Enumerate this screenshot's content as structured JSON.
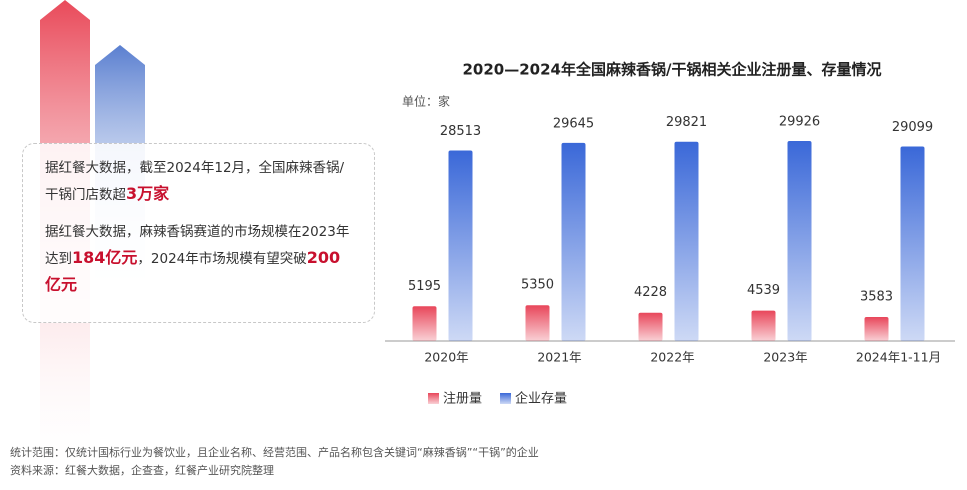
{
  "panel": {
    "paragraphs": [
      [
        {
          "text": "据红餐大数据，截至2024年12月，全国麻辣香锅/干锅门店数超",
          "bold": false
        },
        {
          "text": "3万家",
          "bold": true
        }
      ],
      [
        {
          "text": "据红餐大数据，麻辣香锅赛道的市场规模在2023年达到",
          "bold": false
        },
        {
          "text": "184亿元",
          "bold": true
        },
        {
          "text": "，2024年市场规模有望突破",
          "bold": false
        },
        {
          "text": "200亿元",
          "bold": true
        }
      ]
    ]
  },
  "chart_data": {
    "type": "bar",
    "title": "2020—2024年全国麻辣香锅/干锅相关企业注册量、存量情况",
    "unit": "单位：家",
    "categories": [
      "2020年",
      "2021年",
      "2022年",
      "2023年",
      "2024年1-11月"
    ],
    "series": [
      {
        "name": "注册量",
        "color": "#e8465a",
        "values": [
          5195,
          5350,
          4228,
          4539,
          3583
        ]
      },
      {
        "name": "企业存量",
        "color": "#3a68d8",
        "values": [
          28513,
          29645,
          29821,
          29926,
          29099
        ]
      }
    ]
  },
  "footnotes": [
    "统计范围：仅统计国标行业为餐饮业，且企业名称、经营范围、产品名称包含关键词“麻辣香锅”“干锅”的企业",
    "资料来源：红餐大数据，企查查，红餐产业研究院整理"
  ]
}
